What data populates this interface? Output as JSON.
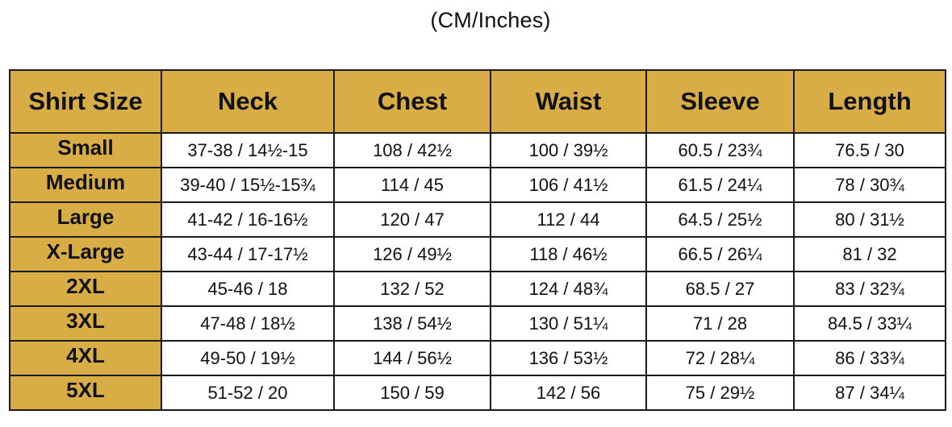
{
  "caption": "(CM/Inches)",
  "table": {
    "headers": [
      "Shirt Size",
      "Neck",
      "Chest",
      "Waist",
      "Sleeve",
      "Length"
    ],
    "rows": [
      [
        "Small",
        "37-38 / 14½-15",
        "108 / 42½",
        "100 / 39½",
        "60.5 / 23¾",
        "76.5 / 30"
      ],
      [
        "Medium",
        "39-40 / 15½-15¾",
        "114 / 45",
        "106 / 41½",
        "61.5 / 24¼",
        "78 / 30¾"
      ],
      [
        "Large",
        "41-42 / 16-16½",
        "120 / 47",
        "112 / 44",
        "64.5 / 25½",
        "80 / 31½"
      ],
      [
        "X-Large",
        "43-44 / 17-17½",
        "126 / 49½",
        "118 / 46½",
        "66.5 / 26¼",
        "81 / 32"
      ],
      [
        "2XL",
        "45-46 / 18",
        "132 / 52",
        "124 / 48¾",
        "68.5 / 27",
        "83 / 32¾"
      ],
      [
        "3XL",
        "47-48 / 18½",
        "138 / 54½",
        "130 / 51¼",
        "71 / 28",
        "84.5 / 33¼"
      ],
      [
        "4XL",
        "49-50 / 19½",
        "144 / 56½",
        "136 / 53½",
        "72 / 28¼",
        "86 / 33¾"
      ],
      [
        "5XL",
        "51-52 / 20",
        "150 / 59",
        "142 / 56",
        "75 / 29½",
        "87 / 34¼"
      ]
    ]
  },
  "colors": {
    "header_fill": "#d8ad45",
    "border": "#1a1a1a"
  }
}
